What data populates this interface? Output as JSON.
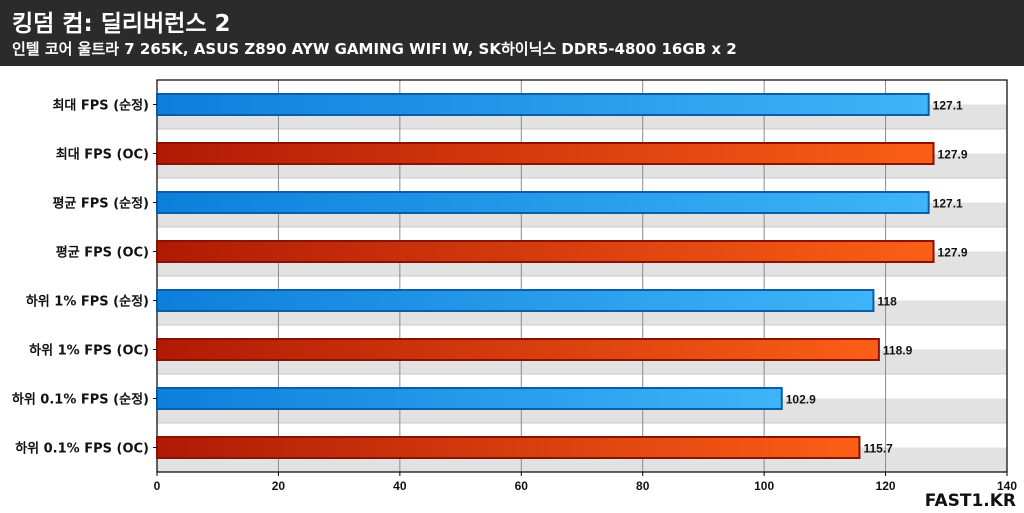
{
  "header": {
    "title": "킹덤 컴: 딜리버런스 2",
    "subtitle": "인텔 코어 울트라 7 265K, ASUS Z890 AYW GAMING WIFI W, SK하이닉스 DDR5-4800 16GB x 2"
  },
  "brand": "FAST1.KR",
  "chart_data": {
    "type": "bar",
    "orientation": "horizontal",
    "title": "킹덤 컴: 딜리버런스 2",
    "subtitle": "인텔 코어 울트라 7 265K, ASUS Z890 AYW GAMING WIFI W, SK하이닉스 DDR5-4800 16GB x 2",
    "categories": [
      "최대 FPS (순정)",
      "최대 FPS (OC)",
      "평균 FPS (순정)",
      "평균 FPS (OC)",
      "하위 1% FPS (순정)",
      "하위 1% FPS (OC)",
      "하위 0.1% FPS (순정)",
      "하위 0.1% FPS (OC)"
    ],
    "values": [
      127.1,
      127.9,
      127.1,
      127.9,
      118,
      118.9,
      102.9,
      115.7
    ],
    "value_labels": [
      "127.1",
      "127.9",
      "127.1",
      "127.9",
      "118",
      "118.9",
      "102.9",
      "115.7"
    ],
    "bar_colors": [
      "blue",
      "orange",
      "blue",
      "orange",
      "blue",
      "orange",
      "blue",
      "orange"
    ],
    "colors": {
      "blue": "#2a9be8",
      "orange": "#e04a10"
    },
    "xlim": [
      0,
      140
    ],
    "xticks": [
      0,
      20,
      40,
      60,
      80,
      100,
      120,
      140
    ],
    "xlabel": "",
    "ylabel": "",
    "grid": true
  }
}
